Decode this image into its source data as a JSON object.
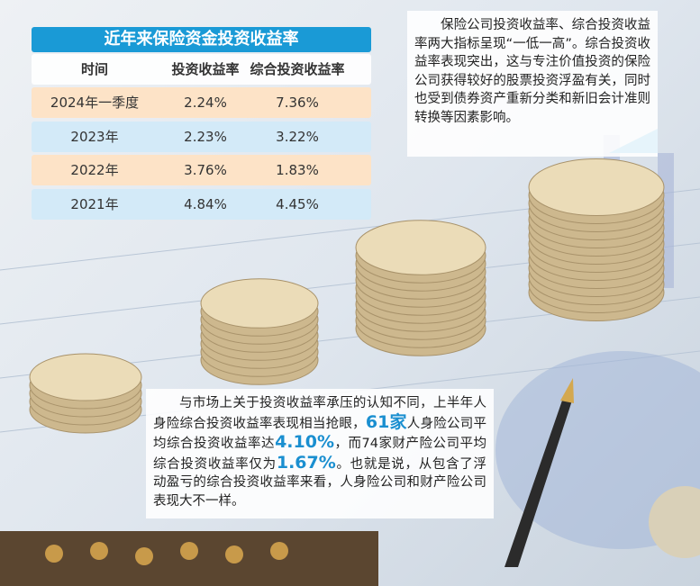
{
  "table": {
    "title": "近年来保险资金投资收益率",
    "header": [
      "时间",
      "投资收益率",
      "综合投资收益率"
    ],
    "rows": [
      [
        "2024年一季度",
        "2.24%",
        "7.36%"
      ],
      [
        "2023年",
        "2.23%",
        "3.22%"
      ],
      [
        "2022年",
        "3.76%",
        "1.83%"
      ],
      [
        "2021年",
        "4.84%",
        "4.45%"
      ]
    ]
  },
  "note_top": {
    "text": "保险公司投资收益率、综合投资收益率两大指标呈现“一低一高”。综合投资收益率表现突出，这与专注价值投资的保险公司获得较好的股票投资浮盈有关，同时也受到债券资产重新分类和新旧会计准则转换等因素影响。"
  },
  "note_bottom": {
    "segments": [
      {
        "text": "与市场上关于投资收益率承压的认知不同，上半年人身险综合投资收益率表现相当抢眼，",
        "highlight": false
      },
      {
        "text": "61家",
        "highlight": true
      },
      {
        "text": "人身险公司平均综合投资收益率达",
        "highlight": false
      },
      {
        "text": "4.10%",
        "highlight": true
      },
      {
        "text": "，而74家财产险公司平均综合投资收益率仅为",
        "highlight": false
      },
      {
        "text": "1.67%",
        "highlight": true
      },
      {
        "text": "。也就是说，从包含了浮动盈亏的综合投资收益率来看，人身险公司和财产险公司表现大不一样。",
        "highlight": false
      }
    ]
  }
}
